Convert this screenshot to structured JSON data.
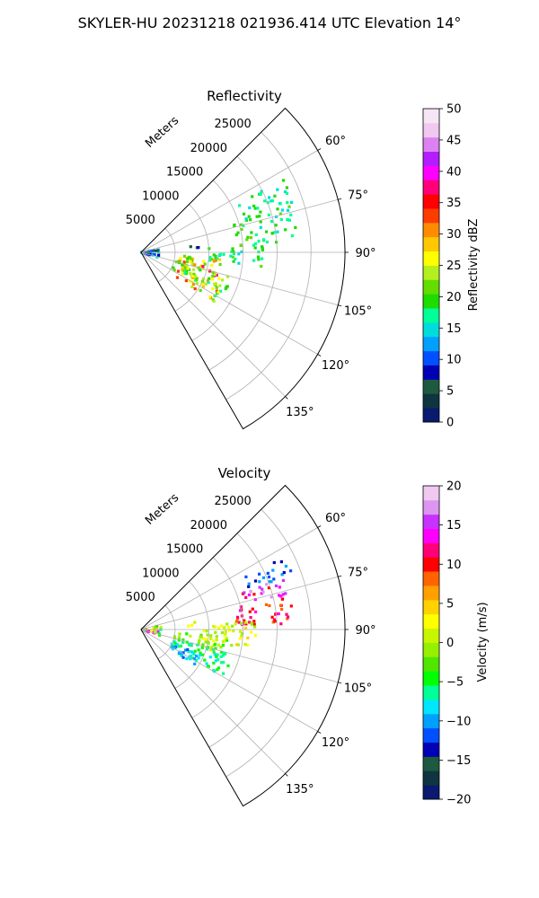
{
  "figure_title": "SKYLER-HU  20231218  021936.414 UTC Elevation 14°",
  "chart_data": [
    {
      "type": "heatmap",
      "title": "Reflectivity",
      "range_label": "Meters",
      "range_ticks": [
        5000,
        10000,
        15000,
        20000,
        25000
      ],
      "range_tick_labels": [
        "5000",
        "10000",
        "15000",
        "20000",
        "25000"
      ],
      "r_max": 30000,
      "azimuth_range": [
        45,
        150
      ],
      "azimuth_ticks": [
        60,
        75,
        90,
        105,
        120,
        135
      ],
      "azimuth_tick_labels": [
        "60°",
        "75°",
        "90°",
        "105°",
        "120°",
        "135°"
      ],
      "grid": true,
      "colorbar": {
        "label": "Reflectivity dBZ",
        "min": 0,
        "max": 50,
        "ticks": [
          0,
          5,
          10,
          15,
          20,
          25,
          30,
          35,
          40,
          45,
          50
        ],
        "tick_labels": [
          "0",
          "5",
          "10",
          "15",
          "20",
          "25",
          "30",
          "35",
          "40",
          "45",
          "50"
        ],
        "colors": [
          "#0a1a6e",
          "#0f3540",
          "#1e5a40",
          "#0000b4",
          "#0050ff",
          "#00a0ff",
          "#00dcdc",
          "#00ff96",
          "#1edc00",
          "#64dc00",
          "#b4f01e",
          "#ffff00",
          "#ffc800",
          "#ff8c00",
          "#ff3c00",
          "#ff0000",
          "#ff0078",
          "#ff00ff",
          "#b41eff",
          "#dc82f0",
          "#f0c8f0",
          "#f5e6f5"
        ]
      },
      "features": [
        {
          "az": [
            72,
            86
          ],
          "r": [
            14000,
            23000
          ],
          "value": [
            14,
            22
          ]
        },
        {
          "az": [
            63,
            72
          ],
          "r": [
            16000,
            24000
          ],
          "value": [
            14,
            20
          ]
        },
        {
          "az": [
            86,
            97
          ],
          "r": [
            10000,
            18000
          ],
          "value": [
            15,
            22
          ]
        },
        {
          "az": [
            95,
            108
          ],
          "r": [
            5000,
            12000
          ],
          "value": [
            18,
            38
          ]
        },
        {
          "az": [
            104,
            118
          ],
          "r": [
            5000,
            14000
          ],
          "value": [
            18,
            26
          ]
        },
        {
          "az": [
            112,
            125
          ],
          "r": [
            6000,
            13000
          ],
          "value": [
            17,
            34
          ]
        },
        {
          "az": [
            78,
            110
          ],
          "r": [
            0,
            3000
          ],
          "value": [
            5,
            16
          ]
        },
        {
          "az": [
            82,
            86
          ],
          "r": [
            6500,
            8500
          ],
          "value": [
            3,
            9
          ]
        }
      ]
    },
    {
      "type": "heatmap",
      "title": "Velocity",
      "range_label": "Meters",
      "range_ticks": [
        5000,
        10000,
        15000,
        20000,
        25000
      ],
      "range_tick_labels": [
        "5000",
        "10000",
        "15000",
        "20000",
        "25000"
      ],
      "r_max": 30000,
      "azimuth_range": [
        45,
        150
      ],
      "azimuth_ticks": [
        60,
        75,
        90,
        105,
        120,
        135
      ],
      "azimuth_tick_labels": [
        "60°",
        "75°",
        "90°",
        "105°",
        "120°",
        "135°"
      ],
      "grid": true,
      "colorbar": {
        "label": "Velocity (m/s)",
        "min": -20,
        "max": 20,
        "ticks": [
          -20,
          -15,
          -10,
          -5,
          0,
          5,
          10,
          15,
          20
        ],
        "tick_labels": [
          "−20",
          "−15",
          "−10",
          "−5",
          "0",
          "5",
          "10",
          "15",
          "20"
        ],
        "colors": [
          "#0a1a6e",
          "#0f3540",
          "#1e5a40",
          "#0000b4",
          "#0050ff",
          "#00a0ff",
          "#00e6ff",
          "#00ff96",
          "#00ff00",
          "#50e600",
          "#96f000",
          "#c8f500",
          "#ffff00",
          "#ffd200",
          "#ffa000",
          "#ff6400",
          "#ff0000",
          "#ff0078",
          "#ff00ff",
          "#c832ff",
          "#dc96f0",
          "#f0c8f0"
        ]
      },
      "features": [
        {
          "az": [
            63,
            70
          ],
          "r": [
            17000,
            24000
          ],
          "value": [
            -14,
            -10
          ]
        },
        {
          "az": [
            70,
            78
          ],
          "r": [
            15000,
            23000
          ],
          "value": [
            10,
            18
          ]
        },
        {
          "az": [
            78,
            88
          ],
          "r": [
            14000,
            23000
          ],
          "value": [
            8,
            14
          ]
        },
        {
          "az": [
            86,
            100
          ],
          "r": [
            9000,
            17000
          ],
          "value": [
            -1,
            4
          ]
        },
        {
          "az": [
            95,
            108
          ],
          "r": [
            5000,
            13000
          ],
          "value": [
            -5,
            2
          ]
        },
        {
          "az": [
            104,
            120
          ],
          "r": [
            5000,
            14000
          ],
          "value": [
            -8,
            -4
          ]
        },
        {
          "az": [
            112,
            125
          ],
          "r": [
            5000,
            10000
          ],
          "value": [
            -12,
            -7
          ]
        },
        {
          "az": [
            78,
            110
          ],
          "r": [
            0,
            3000
          ],
          "value": [
            -10,
            15
          ]
        },
        {
          "az": [
            82,
            86
          ],
          "r": [
            6500,
            8500
          ],
          "value": [
            0,
            3
          ]
        }
      ]
    }
  ]
}
